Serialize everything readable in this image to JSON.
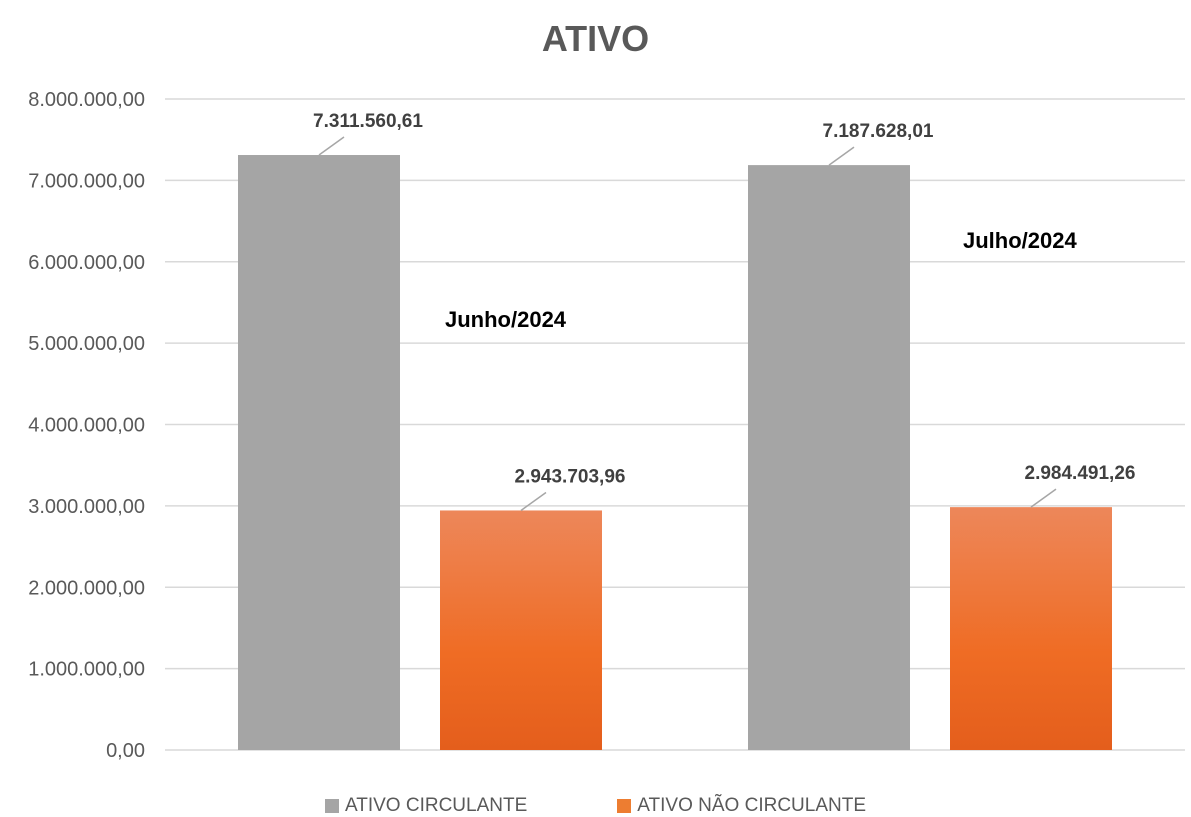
{
  "chart_data": {
    "type": "bar",
    "title": "ATIVO",
    "categories": [
      "Junho/2024",
      "Julho/2024"
    ],
    "series": [
      {
        "name": "ATIVO CIRCULANTE",
        "values": [
          7311560.61,
          7187628.01
        ],
        "color": "#A5A5A5"
      },
      {
        "name": "ATIVO NÃO CIRCULANTE",
        "values": [
          2943703.96,
          2984491.26
        ],
        "color": "#ED7D31"
      }
    ],
    "data_labels": [
      [
        "7.311.560,61",
        "7.187.628,01"
      ],
      [
        "2.943.703,96",
        "2.984.491,26"
      ]
    ],
    "y_ticks": [
      "0,00",
      "1.000.000,00",
      "2.000.000,00",
      "3.000.000,00",
      "4.000.000,00",
      "5.000.000,00",
      "6.000.000,00",
      "7.000.000,00",
      "8.000.000,00"
    ],
    "ylim": [
      0,
      8000000
    ],
    "grid": true,
    "legend_position": "bottom",
    "xlabel": "",
    "ylabel": ""
  }
}
